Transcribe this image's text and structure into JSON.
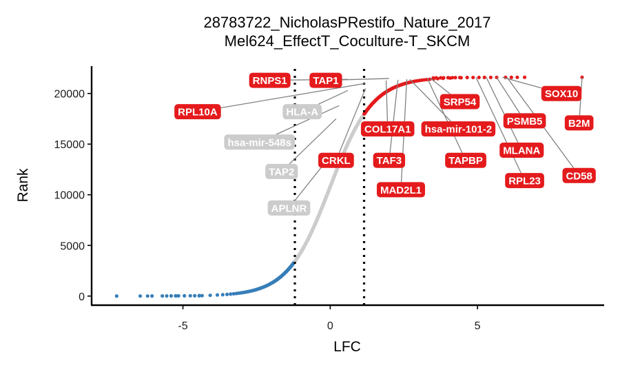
{
  "chart_data": {
    "type": "scatter",
    "title": "28783722_NicholasPRestifo_Nature_2017",
    "subtitle": "Mel624_EffectT_Coculture-T_SKCM",
    "xlabel": "LFC",
    "ylabel": "Rank",
    "xlim": [
      -8.1,
      9.3
    ],
    "ylim": [
      -900,
      22700
    ],
    "x_ticks": [
      -5,
      0,
      5
    ],
    "x_tick_labels": [
      "-5",
      "0",
      "5"
    ],
    "y_ticks": [
      0,
      5000,
      10000,
      15000,
      20000
    ],
    "y_tick_labels": [
      "0",
      "5000",
      "10000",
      "15000",
      "20000"
    ],
    "thresholds": [
      -1.2,
      1.15
    ],
    "grid": false,
    "legend": "none",
    "colors": {
      "down": "#377eb8",
      "neutral": "#cccccc",
      "up": "#e41a1c",
      "leader": "#808080",
      "axis": "#000000"
    },
    "n_genes": 21600,
    "curve_scale": 0.72,
    "down_points": [
      {
        "x": -7.25,
        "y": 0
      },
      {
        "x": -6.45,
        "y": 3
      },
      {
        "x": -6.2,
        "y": 6
      },
      {
        "x": -6.05,
        "y": 9
      },
      {
        "x": -5.7,
        "y": 12
      },
      {
        "x": -5.55,
        "y": 15
      },
      {
        "x": -5.4,
        "y": 18
      },
      {
        "x": -5.25,
        "y": 21
      },
      {
        "x": -5.15,
        "y": 24
      },
      {
        "x": -4.95,
        "y": 27
      },
      {
        "x": -4.75,
        "y": 30
      },
      {
        "x": -4.6,
        "y": 33
      },
      {
        "x": -4.45,
        "y": 36
      },
      {
        "x": -4.35,
        "y": 39
      }
    ],
    "up_points": [
      {
        "x": 3.5,
        "y": 21540
      },
      {
        "x": 3.6,
        "y": 21545
      },
      {
        "x": 3.75,
        "y": 21550
      },
      {
        "x": 3.85,
        "y": 21555
      },
      {
        "x": 4.0,
        "y": 21560
      },
      {
        "x": 4.15,
        "y": 21565
      },
      {
        "x": 4.25,
        "y": 21570
      },
      {
        "x": 4.4,
        "y": 21575
      },
      {
        "x": 4.65,
        "y": 21578
      },
      {
        "x": 4.85,
        "y": 21581
      },
      {
        "x": 5.05,
        "y": 21584
      },
      {
        "x": 5.45,
        "y": 21587
      },
      {
        "x": 5.65,
        "y": 21590
      },
      {
        "x": 5.95,
        "y": 21593
      },
      {
        "x": 6.15,
        "y": 21596
      },
      {
        "x": 6.35,
        "y": 21598
      },
      {
        "x": 6.6,
        "y": 21599
      },
      {
        "x": 8.55,
        "y": 21600
      }
    ],
    "labels": [
      {
        "text": "RNPS1",
        "color": "#e41a1c",
        "x": 0.6,
        "y": 21400,
        "lx": -2.05,
        "ly": 21300
      },
      {
        "text": "TAP1",
        "color": "#e41a1c",
        "x": 2.0,
        "y": 21480,
        "lx": -0.15,
        "ly": 21300
      },
      {
        "text": "RPL10A",
        "color": "#e41a1c",
        "x": 1.2,
        "y": 21000,
        "lx": -4.5,
        "ly": 18200
      },
      {
        "text": "HLA-A",
        "color": "#cccccc",
        "x": 0.6,
        "y": 20300,
        "lx": -0.95,
        "ly": 18200
      },
      {
        "text": "hsa-mir-548s",
        "color": "#cccccc",
        "x": 0.3,
        "y": 18800,
        "lx": -2.4,
        "ly": 15200
      },
      {
        "text": "CRKL",
        "color": "#e41a1c",
        "x": 1.2,
        "y": 20500,
        "lx": 0.2,
        "ly": 13400
      },
      {
        "text": "TAP2",
        "color": "#cccccc",
        "x": 0.2,
        "y": 17500,
        "lx": -1.65,
        "ly": 12300
      },
      {
        "text": "APLNR",
        "color": "#cccccc",
        "x": 0.05,
        "y": 14000,
        "lx": -1.4,
        "ly": 8700
      },
      {
        "text": "COL17A1",
        "color": "#e41a1c",
        "x": 1.9,
        "y": 21300,
        "lx": 1.95,
        "ly": 16500
      },
      {
        "text": "hsa-mir-101-2",
        "color": "#e41a1c",
        "x": 2.7,
        "y": 21400,
        "lx": 4.35,
        "ly": 16500
      },
      {
        "text": "TAF3",
        "color": "#e41a1c",
        "x": 2.3,
        "y": 21350,
        "lx": 2.0,
        "ly": 13400
      },
      {
        "text": "MAD2L1",
        "color": "#e41a1c",
        "x": 2.6,
        "y": 21420,
        "lx": 2.4,
        "ly": 10500
      },
      {
        "text": "SRP54",
        "color": "#e41a1c",
        "x": 3.4,
        "y": 21500,
        "lx": 4.4,
        "ly": 19200
      },
      {
        "text": "TAPBP",
        "color": "#e41a1c",
        "x": 3.3,
        "y": 21480,
        "lx": 4.6,
        "ly": 13400
      },
      {
        "text": "PSMB5",
        "color": "#e41a1c",
        "x": 5.65,
        "y": 21590,
        "lx": 6.6,
        "ly": 17300
      },
      {
        "text": "MLANA",
        "color": "#e41a1c",
        "x": 5.3,
        "y": 21585,
        "lx": 6.5,
        "ly": 14400
      },
      {
        "text": "RPL23",
        "color": "#e41a1c",
        "x": 4.95,
        "y": 21582,
        "lx": 6.6,
        "ly": 11400
      },
      {
        "text": "SOX10",
        "color": "#e41a1c",
        "x": 5.85,
        "y": 21592,
        "lx": 7.85,
        "ly": 20000
      },
      {
        "text": "CD58",
        "color": "#e41a1c",
        "x": 6.0,
        "y": 21594,
        "lx": 8.45,
        "ly": 11900
      },
      {
        "text": "B2M",
        "color": "#e41a1c",
        "x": 8.55,
        "y": 21600,
        "lx": 8.45,
        "ly": 17100
      }
    ]
  }
}
